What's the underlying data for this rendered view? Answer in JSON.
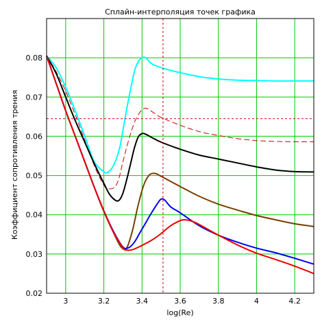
{
  "chart_data": {
    "type": "line",
    "title": "Сплайн-интерполяция точек графика",
    "xlabel": "log(Re)",
    "ylabel": "Коэффициент сопротивления трения",
    "xlim": [
      2.9,
      4.3
    ],
    "ylim": [
      0.02,
      0.09
    ],
    "xticks": [
      3,
      3.2,
      3.4,
      3.6,
      3.8,
      4,
      4.2
    ],
    "xtick_labels": [
      "3",
      "3.2",
      "3.4",
      "3.6",
      "3.8",
      "4",
      "4.2"
    ],
    "yticks": [
      0.02,
      0.03,
      0.04,
      0.05,
      0.06,
      0.07,
      0.08
    ],
    "ytick_labels": [
      "0.02",
      "0.03",
      "0.04",
      "0.05",
      "0.06",
      "0.07",
      "0.08"
    ],
    "grid": true,
    "grid_color": "#00c800",
    "background": "#ffffff",
    "crosshair": {
      "x": 3.51,
      "y": 0.0645,
      "color": "#cc0000",
      "style": "dotted"
    },
    "series": [
      {
        "color": "#00ffff",
        "style": "solid",
        "x": [
          2.9,
          2.95,
          3.0,
          3.05,
          3.1,
          3.15,
          3.2,
          3.22,
          3.25,
          3.28,
          3.3,
          3.32,
          3.34,
          3.36,
          3.38,
          3.4,
          3.42,
          3.45,
          3.5,
          3.6,
          3.7,
          3.8,
          3.9,
          4.0,
          4.1,
          4.2,
          4.3
        ],
        "y": [
          0.0805,
          0.0775,
          0.0725,
          0.0665,
          0.06,
          0.0535,
          0.051,
          0.0508,
          0.0525,
          0.0565,
          0.0615,
          0.067,
          0.072,
          0.0765,
          0.079,
          0.08,
          0.08,
          0.0785,
          0.0775,
          0.0762,
          0.0752,
          0.0746,
          0.0743,
          0.0742,
          0.0741,
          0.0741,
          0.0741
        ]
      },
      {
        "color": "#cc0000",
        "style": "dashed",
        "x": [
          2.9,
          2.95,
          3.0,
          3.05,
          3.1,
          3.15,
          3.2,
          3.23,
          3.26,
          3.28,
          3.3,
          3.33,
          3.36,
          3.39,
          3.41,
          3.43,
          3.46,
          3.5,
          3.6,
          3.7,
          3.8,
          3.9,
          4.0,
          4.1,
          4.2,
          4.3
        ],
        "y": [
          0.0805,
          0.0765,
          0.0715,
          0.0655,
          0.059,
          0.0525,
          0.0475,
          0.0466,
          0.0472,
          0.0495,
          0.0535,
          0.059,
          0.0635,
          0.0662,
          0.0671,
          0.067,
          0.066,
          0.0648,
          0.0628,
          0.0612,
          0.0602,
          0.0594,
          0.0589,
          0.0587,
          0.0586,
          0.0586
        ]
      },
      {
        "color": "#000000",
        "style": "solid",
        "x": [
          2.9,
          2.95,
          3.0,
          3.05,
          3.1,
          3.15,
          3.2,
          3.23,
          3.26,
          3.28,
          3.3,
          3.32,
          3.34,
          3.36,
          3.38,
          3.4,
          3.42,
          3.45,
          3.5,
          3.6,
          3.7,
          3.8,
          3.9,
          4.0,
          4.1,
          4.2,
          4.3
        ],
        "y": [
          0.0805,
          0.076,
          0.07,
          0.064,
          0.0585,
          0.053,
          0.048,
          0.0452,
          0.0437,
          0.0437,
          0.0455,
          0.049,
          0.053,
          0.057,
          0.0598,
          0.0607,
          0.0605,
          0.0597,
          0.0585,
          0.0567,
          0.0552,
          0.0542,
          0.0532,
          0.0522,
          0.0514,
          0.051,
          0.0509
        ]
      },
      {
        "color": "#7a3d00",
        "style": "solid",
        "x": [
          2.9,
          2.95,
          3.0,
          3.05,
          3.1,
          3.15,
          3.2,
          3.25,
          3.29,
          3.32,
          3.35,
          3.38,
          3.41,
          3.44,
          3.47,
          3.5,
          3.6,
          3.7,
          3.8,
          3.9,
          4.0,
          4.1,
          4.2,
          4.3
        ],
        "y": [
          0.0805,
          0.0735,
          0.0665,
          0.06,
          0.0535,
          0.047,
          0.0408,
          0.0355,
          0.0318,
          0.0316,
          0.036,
          0.0425,
          0.0477,
          0.0502,
          0.0505,
          0.0498,
          0.0472,
          0.0447,
          0.0427,
          0.0412,
          0.0398,
          0.0387,
          0.0377,
          0.037
        ]
      },
      {
        "color": "#0000ff",
        "style": "solid",
        "x": [
          2.9,
          2.95,
          3.0,
          3.05,
          3.1,
          3.15,
          3.2,
          3.25,
          3.3,
          3.33,
          3.36,
          3.39,
          3.42,
          3.45,
          3.48,
          3.5,
          3.52,
          3.55,
          3.6,
          3.7,
          3.8,
          3.9,
          4.0,
          4.1,
          4.2,
          4.3
        ],
        "y": [
          0.0805,
          0.0735,
          0.0665,
          0.06,
          0.0535,
          0.047,
          0.041,
          0.0358,
          0.0318,
          0.0316,
          0.033,
          0.0355,
          0.038,
          0.0405,
          0.0428,
          0.044,
          0.0437,
          0.042,
          0.0405,
          0.0372,
          0.0348,
          0.033,
          0.0315,
          0.0303,
          0.0289,
          0.0274
        ]
      },
      {
        "color": "#ee0000",
        "style": "solid",
        "x": [
          2.9,
          2.95,
          3.0,
          3.05,
          3.1,
          3.15,
          3.2,
          3.25,
          3.3,
          3.32,
          3.35,
          3.4,
          3.45,
          3.5,
          3.55,
          3.6,
          3.63,
          3.67,
          3.7,
          3.8,
          3.9,
          4.0,
          4.1,
          4.2,
          4.3
        ],
        "y": [
          0.0805,
          0.0735,
          0.0665,
          0.06,
          0.0535,
          0.047,
          0.041,
          0.0356,
          0.0316,
          0.031,
          0.0311,
          0.0322,
          0.0335,
          0.0352,
          0.0372,
          0.0385,
          0.0387,
          0.0382,
          0.0375,
          0.0348,
          0.0323,
          0.0302,
          0.0286,
          0.0269,
          0.025
        ]
      }
    ]
  }
}
